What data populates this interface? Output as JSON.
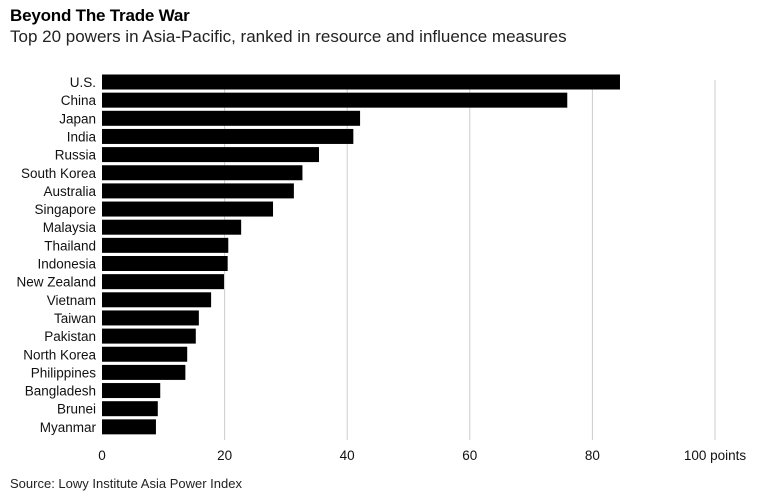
{
  "header": {
    "title": "Beyond The Trade War",
    "subtitle": "Top 20 powers in Asia-Pacific, ranked in resource and influence measures"
  },
  "footer": {
    "source": "Source: Lowy Institute Asia Power Index"
  },
  "colors": {
    "bar": "#000000",
    "gridline": "#cccccc"
  },
  "chart_data": {
    "type": "bar",
    "orientation": "horizontal",
    "title": "Beyond The Trade War",
    "subtitle": "Top 20 powers in Asia-Pacific, ranked in resource and influence measures",
    "categories": [
      "U.S.",
      "China",
      "Japan",
      "India",
      "Russia",
      "South Korea",
      "Australia",
      "Singapore",
      "Malaysia",
      "Thailand",
      "Indonesia",
      "New Zealand",
      "Vietnam",
      "Taiwan",
      "Pakistan",
      "North Korea",
      "Philippines",
      "Bangladesh",
      "Brunei",
      "Myanmar"
    ],
    "values": [
      84.5,
      75.9,
      42.1,
      41.0,
      35.4,
      32.7,
      31.3,
      27.9,
      22.7,
      20.6,
      20.5,
      19.9,
      17.8,
      15.8,
      15.3,
      13.9,
      13.6,
      9.5,
      9.1,
      8.8
    ],
    "xlim": [
      0,
      100
    ],
    "xticks": [
      "0",
      "20",
      "40",
      "60",
      "80",
      "100 points"
    ],
    "grid": true
  }
}
